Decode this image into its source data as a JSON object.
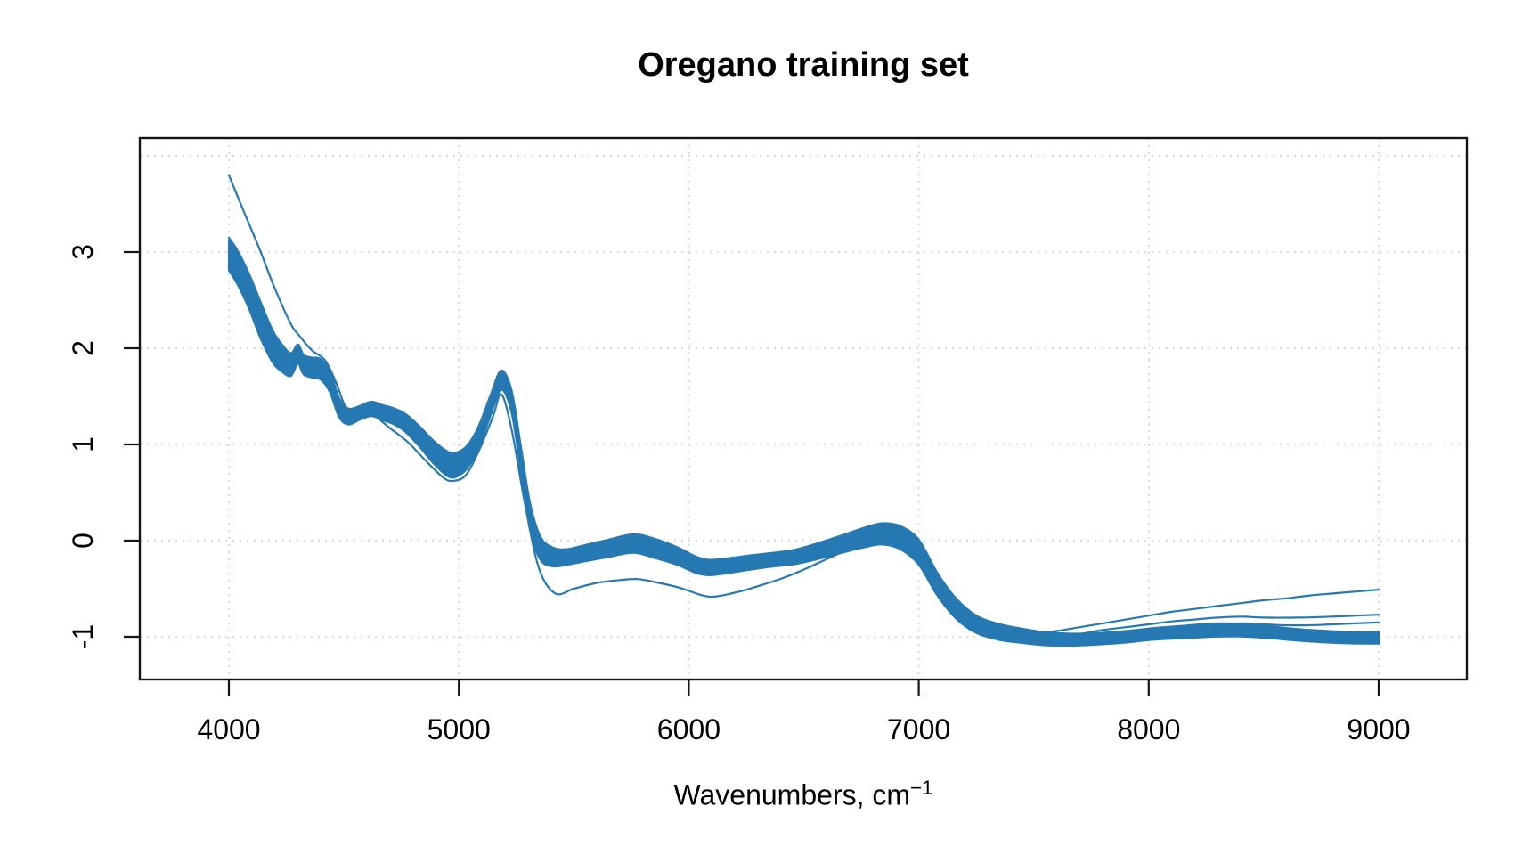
{
  "chart_data": {
    "type": "line",
    "title": "Oregano training set",
    "xlabel_base": "Wavenumbers, cm",
    "xlabel_sup": "−1",
    "ylabel": "",
    "x_ticks": [
      4000,
      5000,
      6000,
      7000,
      8000,
      9000
    ],
    "y_ticks": [
      -1,
      0,
      1,
      2,
      3
    ],
    "y_gridlines": [
      -1,
      0,
      1,
      2,
      3,
      4
    ],
    "xlim": [
      3610,
      9385
    ],
    "ylim": [
      -1.44,
      4.19
    ],
    "x_data_range": [
      4000,
      9000
    ],
    "grid": true,
    "legend": "none",
    "line_color": "#2679B2",
    "axis_color": "#151515",
    "grid_color": "#d4d4d4",
    "bundle": {
      "count": 30,
      "offsets": [
        -1,
        -0.96,
        -0.9,
        -0.85,
        -0.79,
        -0.73,
        -0.67,
        -0.61,
        -0.55,
        -0.48,
        -0.42,
        -0.36,
        -0.3,
        -0.24,
        -0.17,
        -0.1,
        -0.03,
        0.04,
        0.1,
        0.17,
        0.24,
        0.31,
        0.38,
        0.45,
        0.52,
        0.6,
        0.68,
        0.76,
        0.85,
        1
      ],
      "mean_profile": [
        [
          4000,
          2.98
        ],
        [
          4040,
          2.83
        ],
        [
          4090,
          2.58
        ],
        [
          4140,
          2.28
        ],
        [
          4190,
          2.02
        ],
        [
          4230,
          1.9
        ],
        [
          4270,
          1.83
        ],
        [
          4300,
          1.94
        ],
        [
          4325,
          1.83
        ],
        [
          4360,
          1.8
        ],
        [
          4400,
          1.78
        ],
        [
          4440,
          1.65
        ],
        [
          4480,
          1.38
        ],
        [
          4520,
          1.29
        ],
        [
          4570,
          1.33
        ],
        [
          4620,
          1.37
        ],
        [
          4670,
          1.33
        ],
        [
          4720,
          1.29
        ],
        [
          4770,
          1.22
        ],
        [
          4830,
          1.08
        ],
        [
          4890,
          0.92
        ],
        [
          4950,
          0.8
        ],
        [
          4990,
          0.79
        ],
        [
          5040,
          0.88
        ],
        [
          5090,
          1.1
        ],
        [
          5140,
          1.42
        ],
        [
          5185,
          1.67
        ],
        [
          5230,
          1.44
        ],
        [
          5270,
          0.85
        ],
        [
          5310,
          0.25
        ],
        [
          5355,
          -0.08
        ],
        [
          5410,
          -0.17
        ],
        [
          5470,
          -0.17
        ],
        [
          5550,
          -0.13
        ],
        [
          5650,
          -0.08
        ],
        [
          5760,
          -0.03
        ],
        [
          5850,
          -0.08
        ],
        [
          5950,
          -0.16
        ],
        [
          6030,
          -0.25
        ],
        [
          6090,
          -0.28
        ],
        [
          6170,
          -0.26
        ],
        [
          6260,
          -0.23
        ],
        [
          6360,
          -0.2
        ],
        [
          6460,
          -0.17
        ],
        [
          6560,
          -0.11
        ],
        [
          6660,
          -0.04
        ],
        [
          6760,
          0.03
        ],
        [
          6840,
          0.07
        ],
        [
          6920,
          0.03
        ],
        [
          7000,
          -0.12
        ],
        [
          7080,
          -0.45
        ],
        [
          7160,
          -0.7
        ],
        [
          7250,
          -0.87
        ],
        [
          7350,
          -0.95
        ],
        [
          7450,
          -0.99
        ],
        [
          7550,
          -1.02
        ],
        [
          7660,
          -1.03
        ],
        [
          7780,
          -1.02
        ],
        [
          7900,
          -1.0
        ],
        [
          8020,
          -0.97
        ],
        [
          8150,
          -0.95
        ],
        [
          8280,
          -0.93
        ],
        [
          8400,
          -0.93
        ],
        [
          8520,
          -0.95
        ],
        [
          8650,
          -0.98
        ],
        [
          8780,
          -1.0
        ],
        [
          8900,
          -1.01
        ],
        [
          9000,
          -1.01
        ]
      ],
      "halfwidth_profile": [
        [
          4000,
          0.17
        ],
        [
          4150,
          0.19
        ],
        [
          4300,
          0.1
        ],
        [
          4450,
          0.11
        ],
        [
          4550,
          0.07
        ],
        [
          4700,
          0.08
        ],
        [
          4850,
          0.11
        ],
        [
          4960,
          0.13
        ],
        [
          5090,
          0.11
        ],
        [
          5185,
          0.1
        ],
        [
          5310,
          0.14
        ],
        [
          5450,
          0.08
        ],
        [
          5650,
          0.09
        ],
        [
          5850,
          0.1
        ],
        [
          6090,
          0.08
        ],
        [
          6400,
          0.07
        ],
        [
          6660,
          0.09
        ],
        [
          6840,
          0.11
        ],
        [
          7000,
          0.13
        ],
        [
          7250,
          0.09
        ],
        [
          7500,
          0.07
        ],
        [
          7700,
          0.06
        ],
        [
          8000,
          0.06
        ],
        [
          8300,
          0.07
        ],
        [
          8600,
          0.06
        ],
        [
          9000,
          0.06
        ]
      ]
    },
    "outlier_spectra": [
      {
        "name": "outlier-full-range",
        "points": [
          [
            4000,
            3.8
          ],
          [
            4060,
            3.45
          ],
          [
            4130,
            3.05
          ],
          [
            4200,
            2.62
          ],
          [
            4270,
            2.25
          ],
          [
            4310,
            2.12
          ],
          [
            4360,
            1.98
          ],
          [
            4420,
            1.87
          ],
          [
            4470,
            1.62
          ],
          [
            4510,
            1.38
          ],
          [
            4560,
            1.35
          ],
          [
            4620,
            1.32
          ],
          [
            4700,
            1.17
          ],
          [
            4780,
            1.02
          ],
          [
            4860,
            0.82
          ],
          [
            4930,
            0.66
          ],
          [
            4970,
            0.62
          ],
          [
            5030,
            0.68
          ],
          [
            5090,
            0.95
          ],
          [
            5150,
            1.3
          ],
          [
            5185,
            1.52
          ],
          [
            5230,
            1.15
          ],
          [
            5290,
            0.35
          ],
          [
            5350,
            -0.3
          ],
          [
            5420,
            -0.55
          ],
          [
            5500,
            -0.5
          ],
          [
            5600,
            -0.44
          ],
          [
            5700,
            -0.41
          ],
          [
            5780,
            -0.4
          ],
          [
            5870,
            -0.44
          ],
          [
            5960,
            -0.49
          ],
          [
            6060,
            -0.57
          ],
          [
            6120,
            -0.58
          ],
          [
            6220,
            -0.53
          ],
          [
            6320,
            -0.46
          ],
          [
            6420,
            -0.38
          ],
          [
            6520,
            -0.28
          ],
          [
            6620,
            -0.17
          ],
          [
            6720,
            -0.07
          ],
          [
            6820,
            0.0
          ],
          [
            6900,
            -0.02
          ],
          [
            7000,
            -0.2
          ],
          [
            7100,
            -0.55
          ],
          [
            7200,
            -0.78
          ],
          [
            7300,
            -0.9
          ],
          [
            7400,
            -0.95
          ],
          [
            7500,
            -0.96
          ],
          [
            7600,
            -0.94
          ],
          [
            7700,
            -0.9
          ],
          [
            7800,
            -0.86
          ],
          [
            7900,
            -0.82
          ],
          [
            8000,
            -0.78
          ],
          [
            8100,
            -0.74
          ],
          [
            8200,
            -0.71
          ],
          [
            8300,
            -0.68
          ],
          [
            8400,
            -0.65
          ],
          [
            8500,
            -0.62
          ],
          [
            8600,
            -0.6
          ],
          [
            8700,
            -0.57
          ],
          [
            8800,
            -0.55
          ],
          [
            8900,
            -0.53
          ],
          [
            9000,
            -0.51
          ]
        ]
      },
      {
        "name": "upper-right-line",
        "points": [
          [
            7450,
            -1.0
          ],
          [
            7600,
            -1.0
          ],
          [
            7700,
            -0.97
          ],
          [
            7800,
            -0.93
          ],
          [
            7900,
            -0.9
          ],
          [
            8000,
            -0.87
          ],
          [
            8100,
            -0.84
          ],
          [
            8200,
            -0.82
          ],
          [
            8300,
            -0.8
          ],
          [
            8400,
            -0.79
          ],
          [
            8500,
            -0.8
          ],
          [
            8650,
            -0.8
          ],
          [
            8800,
            -0.79
          ],
          [
            8900,
            -0.78
          ],
          [
            9000,
            -0.77
          ]
        ]
      },
      {
        "name": "middle-right-line",
        "points": [
          [
            7400,
            -1.0
          ],
          [
            7600,
            -1.02
          ],
          [
            7800,
            -0.97
          ],
          [
            8000,
            -0.93
          ],
          [
            8200,
            -0.89
          ],
          [
            8300,
            -0.87
          ],
          [
            8400,
            -0.86
          ],
          [
            8500,
            -0.87
          ],
          [
            8600,
            -0.88
          ],
          [
            8700,
            -0.88
          ],
          [
            8800,
            -0.87
          ],
          [
            8900,
            -0.86
          ],
          [
            9000,
            -0.85
          ]
        ]
      }
    ]
  }
}
